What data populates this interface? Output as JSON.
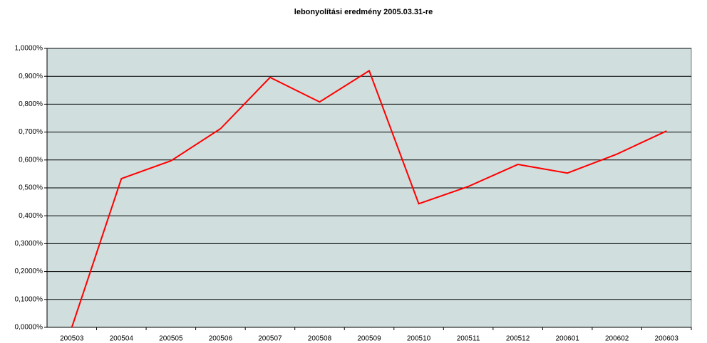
{
  "chart_data": {
    "type": "line",
    "title": "lebonyolítási eredmény 2005.03.31-re",
    "categories": [
      "200503",
      "200504",
      "200505",
      "200506",
      "200507",
      "200508",
      "200509",
      "200510",
      "200511",
      "200512",
      "200601",
      "200602",
      "200603"
    ],
    "series": [
      {
        "color": "#ff0000",
        "values": [
          0,
          0.533,
          0.597,
          0.712,
          0.896,
          0.808,
          0.92,
          0.443,
          0.505,
          0.584,
          0.553,
          0.621,
          0.704
        ]
      }
    ],
    "ylim": [
      0,
      1
    ],
    "yticks": [
      {
        "value": 0,
        "label": "0,0000%"
      },
      {
        "value": 0.1,
        "label": "0,1000%"
      },
      {
        "value": 0.2,
        "label": "0,2000%"
      },
      {
        "value": 0.3,
        "label": "0,3000%"
      },
      {
        "value": 0.4,
        "label": "0,400%"
      },
      {
        "value": 0.5,
        "label": "0,500%"
      },
      {
        "value": 0.6,
        "label": "0,600%"
      },
      {
        "value": 0.7,
        "label": "0,700%"
      },
      {
        "value": 0.8,
        "label": "0,800%"
      },
      {
        "value": 0.9,
        "label": "0,900%"
      },
      {
        "value": 1,
        "label": "1,0000%"
      }
    ],
    "grid": true,
    "plot_background": "#d0dede"
  }
}
